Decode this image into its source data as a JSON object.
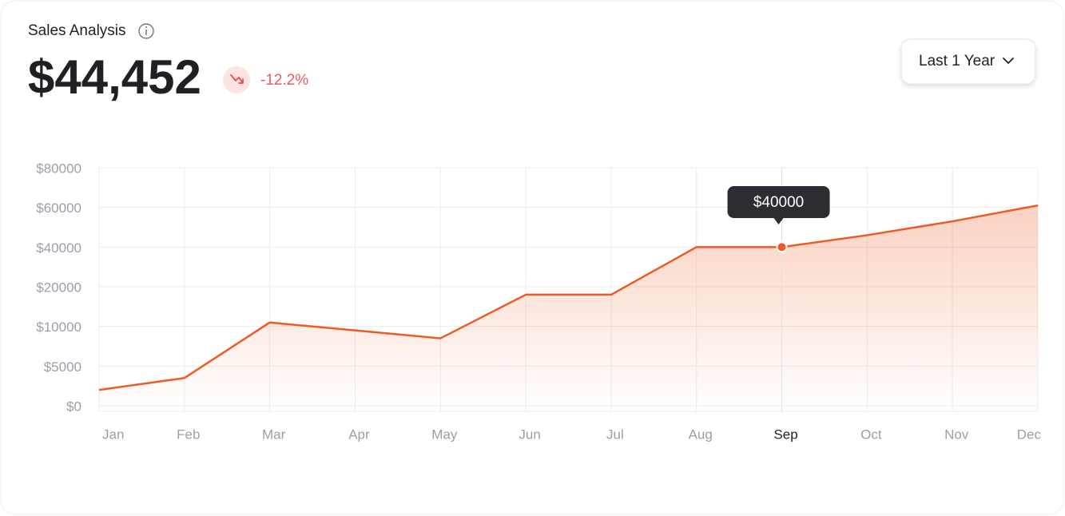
{
  "chart_data": {
    "type": "line",
    "title": "Sales Analysis",
    "summary": {
      "value": "$44,452",
      "change": "-12.2%"
    },
    "range_selector": "Last 1 Year",
    "categories": [
      "Jan",
      "Feb",
      "Mar",
      "Apr",
      "May",
      "Jun",
      "Jul",
      "Aug",
      "Sep",
      "Oct",
      "Nov",
      "Dec"
    ],
    "series": [
      {
        "name": "Sales",
        "color": "#ee5a24",
        "values": [
          2000,
          3500,
          11000,
          9500,
          8500,
          18000,
          18000,
          40000,
          40000,
          46000,
          53000,
          61000
        ],
        "value_labels": [
          null,
          null,
          null,
          null,
          null,
          null,
          null,
          null,
          "$40000",
          null,
          null,
          null
        ]
      }
    ],
    "ylim": [
      0,
      80000
    ],
    "yscale": "evenly spaced ticks",
    "yticks": [
      {
        "value": 0,
        "label": "$0"
      },
      {
        "value": 5000,
        "label": "$5000"
      },
      {
        "value": 10000,
        "label": "$10000"
      },
      {
        "value": 20000,
        "label": "$20000"
      },
      {
        "value": 40000,
        "label": "$40000"
      },
      {
        "value": 60000,
        "label": "$60000"
      },
      {
        "value": 80000,
        "label": "$80000"
      }
    ],
    "grid": true
  }
}
